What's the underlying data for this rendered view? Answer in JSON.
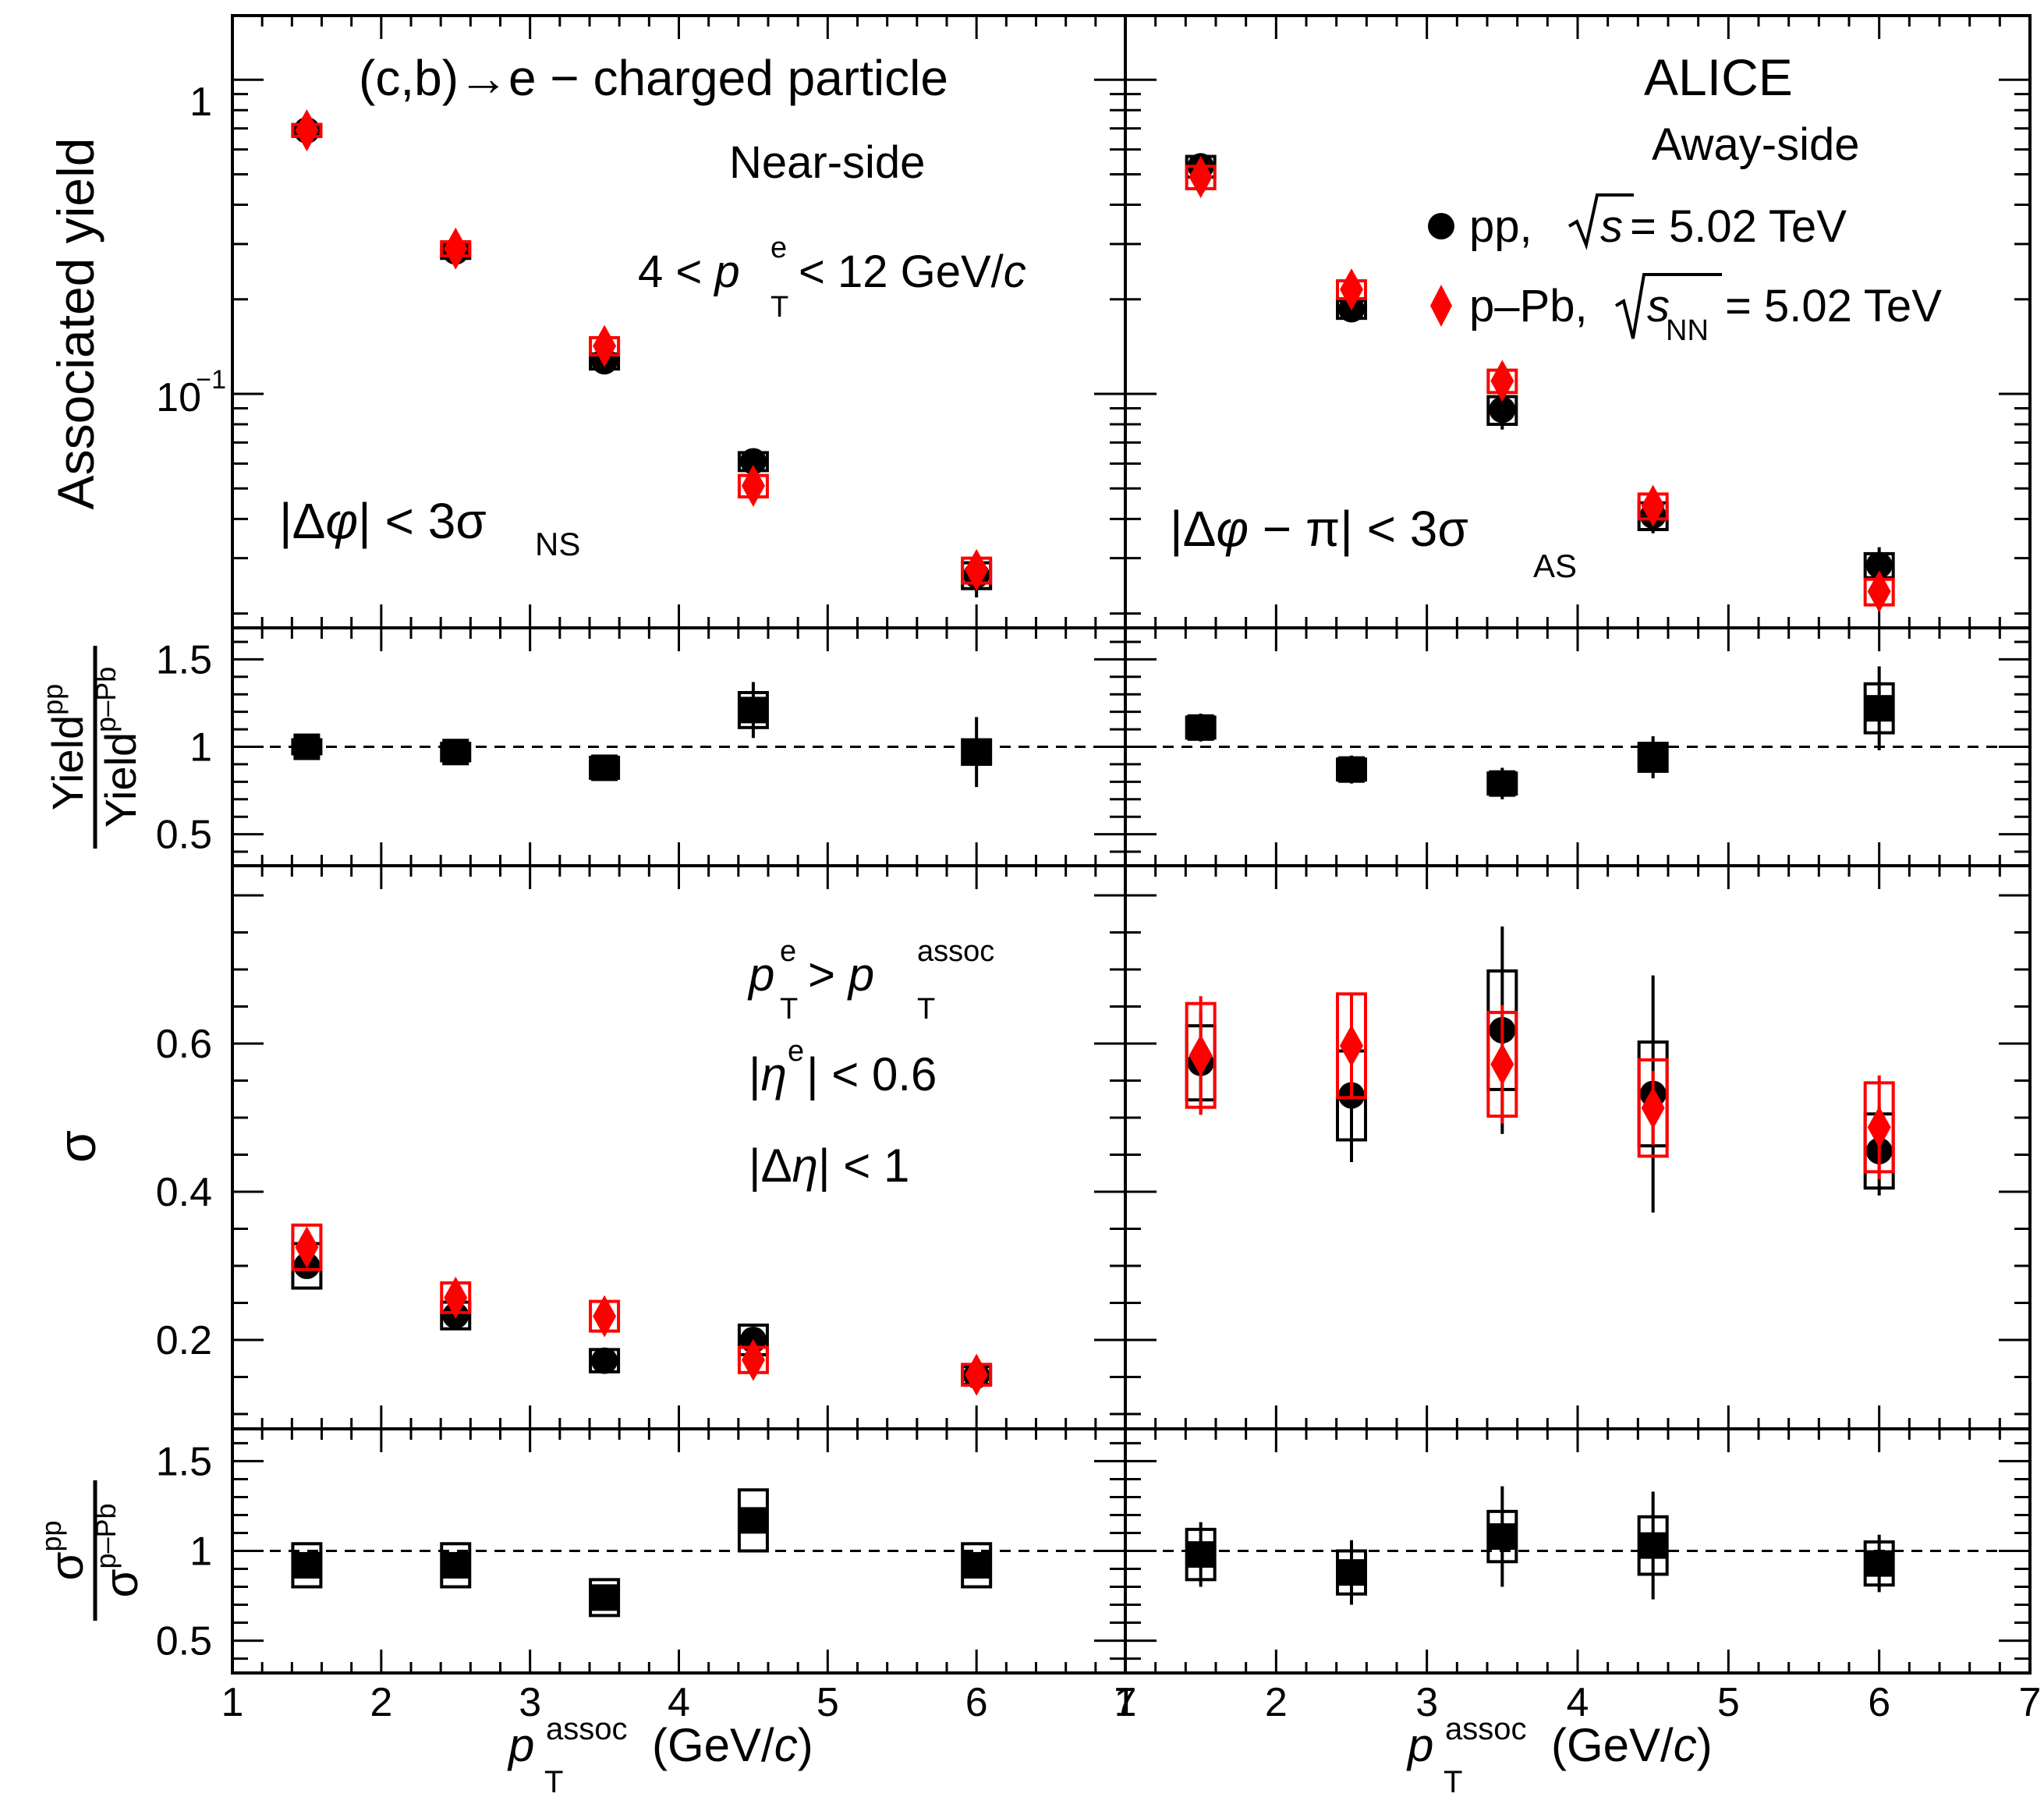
{
  "colors": {
    "pp": "#000000",
    "ppb": "#ff0000",
    "frame": "#000000"
  },
  "labels": {
    "title": "(c,b)→e − charged particle",
    "alice": "ALICE",
    "near_side": "Near-side",
    "away_side": "Away-side",
    "pte_prefix": "4 < ",
    "pte_p": "p",
    "pte_sub": "T",
    "pte_sup": "e",
    "pte_suffix": " < 12 GeV/",
    "pte_c": "c",
    "legend_pp_a": "pp, ",
    "legend_pp_s": "s",
    "legend_pp_b": " = 5.02 TeV",
    "legend_ppb_a": "p–Pb, ",
    "legend_ppb_s": "s",
    "legend_ppb_sub": "NN",
    "legend_ppb_b": " = 5.02 TeV",
    "dphi_ns_a": "|Δ",
    "dphi_ns_phi": "φ",
    "dphi_ns_b": "| < 3σ",
    "dphi_ns_sub": "NS",
    "dphi_as_a": "|Δ",
    "dphi_as_phi": "φ",
    "dphi_as_b": " − π| < 3σ",
    "dphi_as_sub": "AS",
    "cut1_p": "p",
    "cut1_sup1": "e",
    "cut1_sub1": "T",
    "cut1_mid": " > ",
    "cut1_p2": "p",
    "cut1_sup2": "assoc",
    "cut1_sub2": "T",
    "cut2_a": "|",
    "cut2_eta": "η",
    "cut2_sup": "e",
    "cut2_b": "| < 0.6",
    "cut3_a": "|Δ",
    "cut3_eta": "η",
    "cut3_b": "| < 1",
    "ylabel_yield": "Associated yield",
    "ylabel_yratio_num": "Yield",
    "ylabel_yratio_num_sup": "pp",
    "ylabel_yratio_den": "Yield",
    "ylabel_yratio_den_sup": "p–Pb",
    "ylabel_sigma": "σ",
    "ylabel_sratio_num": "σ",
    "ylabel_sratio_num_sup": "pp",
    "ylabel_sratio_den": "σ",
    "ylabel_sratio_den_sup": "p–Pb",
    "xlabel_p": "p",
    "xlabel_sup": "assoc",
    "xlabel_sub": "T",
    "xlabel_unit_a": " (GeV/",
    "xlabel_unit_c": "c",
    "xlabel_unit_b": ")",
    "tick_1": "1",
    "tick_0p1": "10",
    "tick_0p1_exp": "−1"
  },
  "chart_data": {
    "type": "scatter",
    "x_range": [
      1,
      7
    ],
    "x_ticks": [
      "1",
      "2",
      "3",
      "4",
      "5",
      "6",
      "7"
    ],
    "x": [
      1.5,
      2.5,
      3.5,
      4.5,
      6.0
    ],
    "panels": {
      "yield": {
        "scale": "log",
        "ylim": [
          0.018,
          1.6
        ],
        "ticks": [
          {
            "v": 1,
            "label": "1"
          },
          {
            "v": 0.1,
            "label": "10^-1"
          }
        ],
        "near": {
          "pp": {
            "y": [
              0.69,
              0.284,
              0.127,
              0.061,
              0.0265
            ],
            "stat": [
              0.01,
              0.006,
              0.004,
              0.003,
              0.004
            ],
            "sys": [
              0.03,
              0.014,
              0.007,
              0.004,
              0.0025
            ]
          },
          "ppb": {
            "y": [
              0.69,
              0.29,
              0.142,
              0.051,
              0.0275
            ],
            "stat": [
              0.01,
              0.006,
              0.004,
              0.003,
              0.003
            ],
            "sys": [
              0.03,
              0.015,
              0.009,
              0.004,
              0.0025
            ]
          }
        },
        "away": {
          "pp": {
            "y": [
              0.53,
              0.186,
              0.089,
              0.041,
              0.0285
            ],
            "stat": [
              0.02,
              0.015,
              0.012,
              0.005,
              0.004
            ],
            "sys": [
              0.04,
              0.012,
              0.009,
              0.004,
              0.0025
            ]
          },
          "ppb": {
            "y": [
              0.49,
              0.215,
              0.11,
              0.044,
              0.0235
            ],
            "stat": [
              0.02,
              0.012,
              0.008,
              0.003,
              0.003
            ],
            "sys": [
              0.04,
              0.014,
              0.009,
              0.004,
              0.0022
            ]
          }
        }
      },
      "yield_ratio": {
        "scale": "linear",
        "ylim": [
          0.32,
          1.68
        ],
        "ticks": [
          {
            "v": 0.5,
            "label": "0.5"
          },
          {
            "v": 1,
            "label": "1"
          },
          {
            "v": 1.5,
            "label": "1.5"
          }
        ],
        "reference": 1,
        "near": {
          "y": [
            1.0,
            0.97,
            0.88,
            1.21,
            0.97
          ],
          "stat": [
            0.03,
            0.04,
            0.06,
            0.16,
            0.2
          ],
          "sys": [
            0.04,
            0.05,
            0.06,
            0.1,
            0.07
          ]
        },
        "away": {
          "y": [
            1.11,
            0.87,
            0.79,
            0.94,
            1.22
          ],
          "stat": [
            0.08,
            0.08,
            0.09,
            0.12,
            0.24
          ],
          "sys": [
            0.06,
            0.06,
            0.06,
            0.08,
            0.14
          ]
        }
      },
      "sigma": {
        "scale": "linear",
        "ylim": [
          0.08,
          0.84
        ],
        "ticks": [
          {
            "v": 0.2,
            "label": "0.2"
          },
          {
            "v": 0.4,
            "label": "0.4"
          },
          {
            "v": 0.6,
            "label": "0.6"
          }
        ],
        "near": {
          "pp": {
            "y": [
              0.3,
              0.233,
              0.172,
              0.2,
              0.152
            ],
            "stat": [
              0.005,
              0.005,
              0.004,
              0.006,
              0.005
            ],
            "sys": [
              0.03,
              0.018,
              0.015,
              0.02,
              0.012
            ]
          },
          "ppb": {
            "y": [
              0.325,
              0.257,
              0.232,
              0.173,
              0.153
            ],
            "stat": [
              0.005,
              0.005,
              0.005,
              0.004,
              0.004
            ],
            "sys": [
              0.03,
              0.02,
              0.02,
              0.017,
              0.014
            ]
          }
        },
        "away": {
          "pp": {
            "y": [
              0.574,
              0.53,
              0.618,
              0.532,
              0.455
            ],
            "stat": [
              0.07,
              0.09,
              0.14,
              0.16,
              0.06
            ],
            "sys": [
              0.05,
              0.06,
              0.08,
              0.07,
              0.05
            ]
          },
          "ppb": {
            "y": [
              0.584,
              0.597,
              0.572,
              0.513,
              0.487
            ],
            "stat": [
              0.08,
              0.07,
              0.08,
              0.05,
              0.07
            ],
            "sys": [
              0.07,
              0.07,
              0.07,
              0.065,
              0.06
            ]
          }
        }
      },
      "sigma_ratio": {
        "scale": "linear",
        "ylim": [
          0.32,
          1.68
        ],
        "ticks": [
          {
            "v": 0.5,
            "label": "0.5"
          },
          {
            "v": 1,
            "label": "1"
          },
          {
            "v": 1.5,
            "label": "1.5"
          }
        ],
        "reference": 1,
        "near": {
          "y": [
            0.92,
            0.92,
            0.74,
            1.17,
            0.92
          ],
          "stat": [
            0.04,
            0.04,
            0.05,
            0.07,
            0.06
          ],
          "sys": [
            0.12,
            0.12,
            0.1,
            0.17,
            0.12
          ]
        },
        "away": {
          "y": [
            0.98,
            0.88,
            1.08,
            1.03,
            0.93
          ],
          "stat": [
            0.18,
            0.18,
            0.28,
            0.3,
            0.16
          ],
          "sys": [
            0.14,
            0.12,
            0.14,
            0.16,
            0.12
          ]
        }
      }
    }
  }
}
